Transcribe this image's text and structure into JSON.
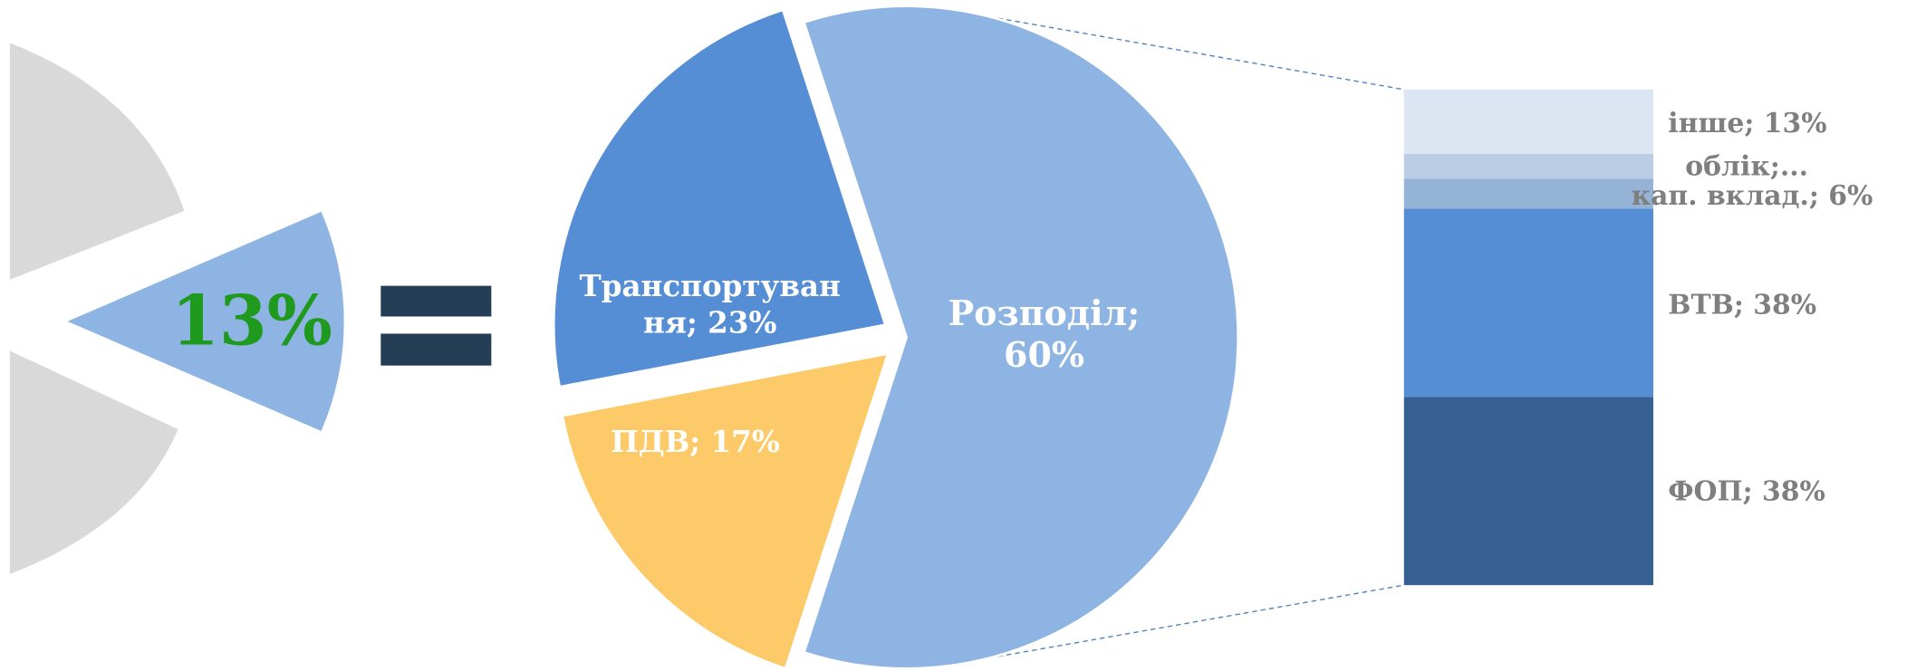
{
  "chart_data": [
    {
      "type": "pie-fragment",
      "values": [
        13
      ],
      "value_labels": [
        "13%"
      ],
      "color": "#8eb4e3",
      "label_color": "#1f9a1f"
    },
    {
      "type": "pie",
      "categories": [
        "Транспортування",
        "ПДВ",
        "Розподіл"
      ],
      "values": [
        23,
        17,
        60
      ],
      "value_labels": [
        [
          "Транспортуван",
          "ня; 23%"
        ],
        [
          "ПДВ; 17%"
        ],
        [
          "Розподіл;",
          "60%"
        ]
      ],
      "colors": [
        "#558ed5",
        "#fdca6a",
        "#8eb4e3"
      ]
    },
    {
      "type": "stacked-bar",
      "series": [
        {
          "name": "ФОП",
          "color": "#376092",
          "values": [
            38
          ],
          "value_labels": [
            "ФОП; 38%"
          ]
        },
        {
          "name": "ВТВ",
          "color": "#558ed5",
          "values": [
            38
          ],
          "value_labels": [
            "ВТВ; 38%"
          ]
        },
        {
          "name": "кап. вклад.",
          "color": "#95b3d7",
          "values": [
            6
          ],
          "value_labels": [
            "кап. вклад.; 6%"
          ]
        },
        {
          "name": "облік",
          "color": "#b9cde5",
          "values": [
            5
          ],
          "value_labels": [
            "облік;..."
          ]
        },
        {
          "name": "інше",
          "color": "#dce6f2",
          "values": [
            13
          ],
          "value_labels": [
            "інше; 13%"
          ]
        }
      ]
    }
  ]
}
